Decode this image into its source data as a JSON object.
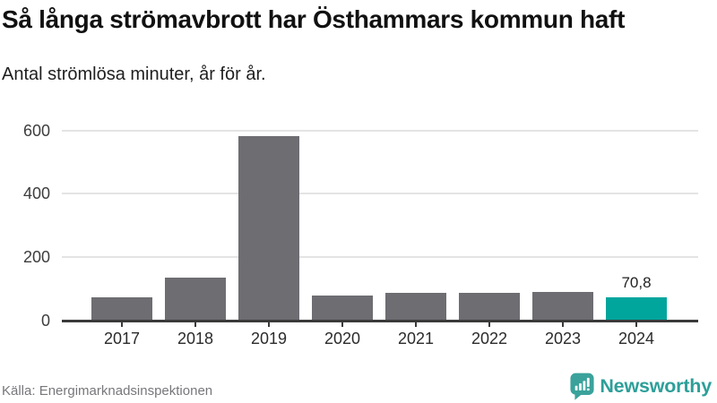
{
  "header": {
    "title": "Så långa strömavbrott har Östhammars kommun haft",
    "subtitle": "Antal strömlösa minuter, år för år."
  },
  "footer": {
    "source": "Källa: Energimarknadsinspektionen",
    "brand_name": "Newsworthy"
  },
  "colors": {
    "bar": "#6d6d72",
    "highlight": "#00a59c",
    "grid": "#e4e4e4",
    "axis": "#3a3a3a",
    "brand_teal": "#2d9f99",
    "title_text": "#111111",
    "source_text": "#77777c"
  },
  "chart_data": {
    "type": "bar",
    "title": "Så långa strömavbrott har Östhammars kommun haft",
    "subtitle": "Antal strömlösa minuter, år för år.",
    "xlabel": "",
    "ylabel": "Antal strömlösa minuter",
    "categories": [
      "2017",
      "2018",
      "2019",
      "2020",
      "2021",
      "2022",
      "2023",
      "2024"
    ],
    "values": [
      72,
      135,
      582,
      79,
      87,
      87,
      90,
      70.8
    ],
    "value_labels": [
      "",
      "",
      "",
      "",
      "",
      "",
      "",
      "70,8"
    ],
    "highlight_index": 7,
    "ylim": [
      0,
      600
    ],
    "yticks": [
      0,
      200,
      400,
      600
    ],
    "grid": true,
    "legend": false
  }
}
